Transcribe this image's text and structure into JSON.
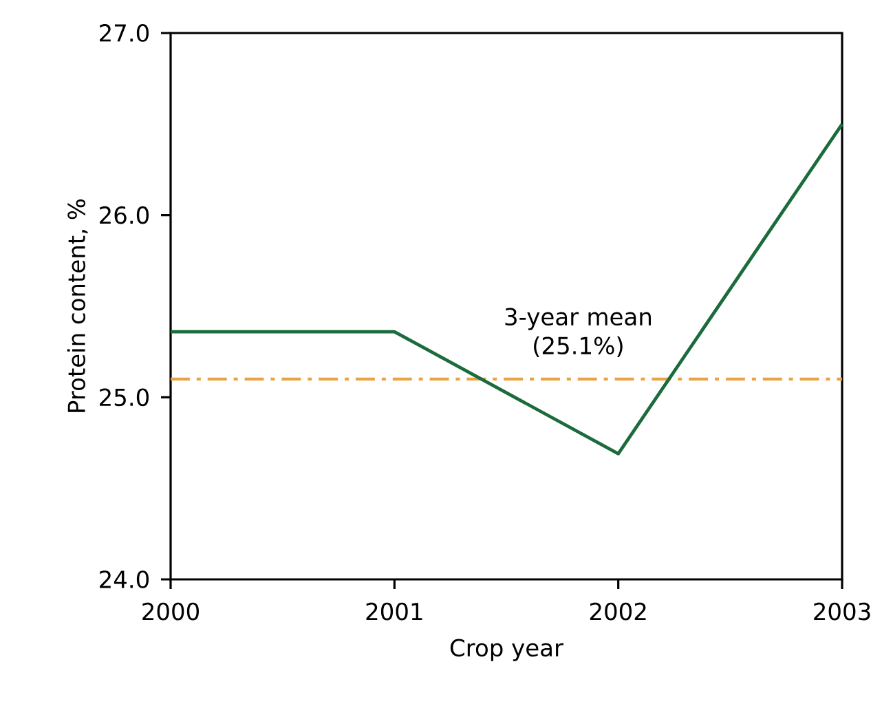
{
  "chart_data": {
    "type": "line",
    "xlabel": "Crop year",
    "ylabel": "Protein content, %",
    "x": [
      2000,
      2001,
      2002,
      2003
    ],
    "series": [
      {
        "color": "#1b6b3c",
        "values": [
          25.36,
          25.36,
          24.69,
          26.5
        ]
      }
    ],
    "xlim": [
      2000,
      2003
    ],
    "xticks": [
      2000,
      2001,
      2002,
      2003
    ],
    "ylim": [
      24.0,
      27.0
    ],
    "yticks": [
      {
        "value": 24,
        "label": "24.0"
      },
      {
        "value": 25,
        "label": "25.0"
      },
      {
        "value": 26,
        "label": "26.0"
      },
      {
        "value": 27,
        "label": "27.0"
      }
    ],
    "ref_lines": [
      {
        "axis": "y",
        "value": 25.1,
        "label": "3-year mean (25.1%)",
        "color": "#e8a444",
        "line_style": "dashdot"
      }
    ],
    "grid": false,
    "marker": "none",
    "line_style": "solid"
  }
}
